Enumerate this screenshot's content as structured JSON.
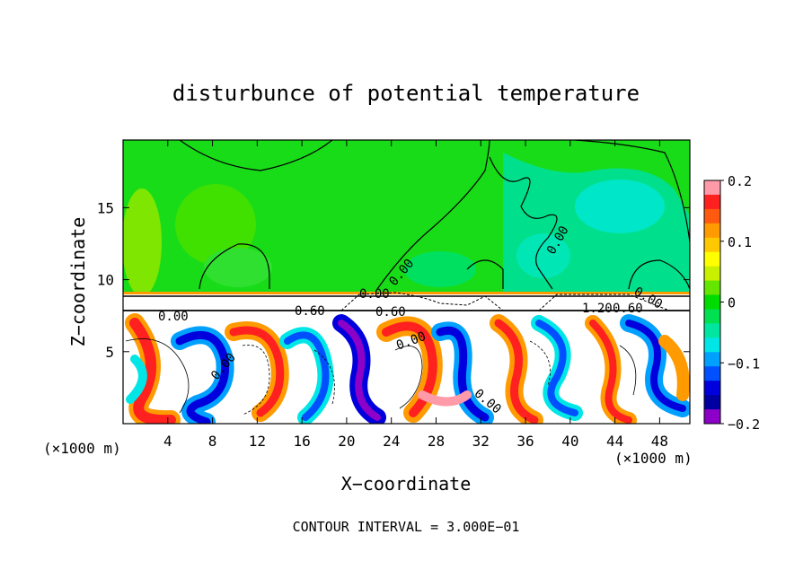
{
  "chart_data": {
    "type": "heatmap",
    "title": "disturbunce of potential temperature",
    "xlabel": "X−coordinate",
    "ylabel": "Z−coordinate",
    "x_unit_left": "(×1000 m)",
    "x_unit_right": "(×1000 m)",
    "x_ticks": [
      4,
      8,
      12,
      16,
      20,
      24,
      28,
      32,
      36,
      40,
      44,
      48
    ],
    "y_ticks": [
      5,
      10,
      15
    ],
    "xlim": [
      0,
      50.7
    ],
    "ylim": [
      0,
      19.7
    ],
    "colorbar": {
      "range": [
        -0.2,
        0.2
      ],
      "tick_values": [
        0.2,
        0.1,
        0,
        -0.1,
        -0.2
      ],
      "tick_labels": [
        "0.2",
        "0.1",
        "0",
        "−0.1",
        "−0.2"
      ],
      "colors": [
        "#ff9aa8",
        "#ff2020",
        "#ff5a10",
        "#ff9a00",
        "#ffc800",
        "#ffff00",
        "#c8f000",
        "#64e600",
        "#00dc00",
        "#00e050",
        "#00e6a0",
        "#00e6e6",
        "#00a0ff",
        "#0050ff",
        "#0000dc",
        "#0000a0",
        "#8c00c8"
      ]
    },
    "contour_labels": [
      "0.00",
      "0.00",
      "0.00",
      "0.00",
      "0.00",
      "0.60",
      "0.60",
      "1.20",
      "0.60",
      "0.00",
      "0.00",
      "0.00"
    ],
    "footer": "CONTOUR INTERVAL = 3.000E−01"
  }
}
